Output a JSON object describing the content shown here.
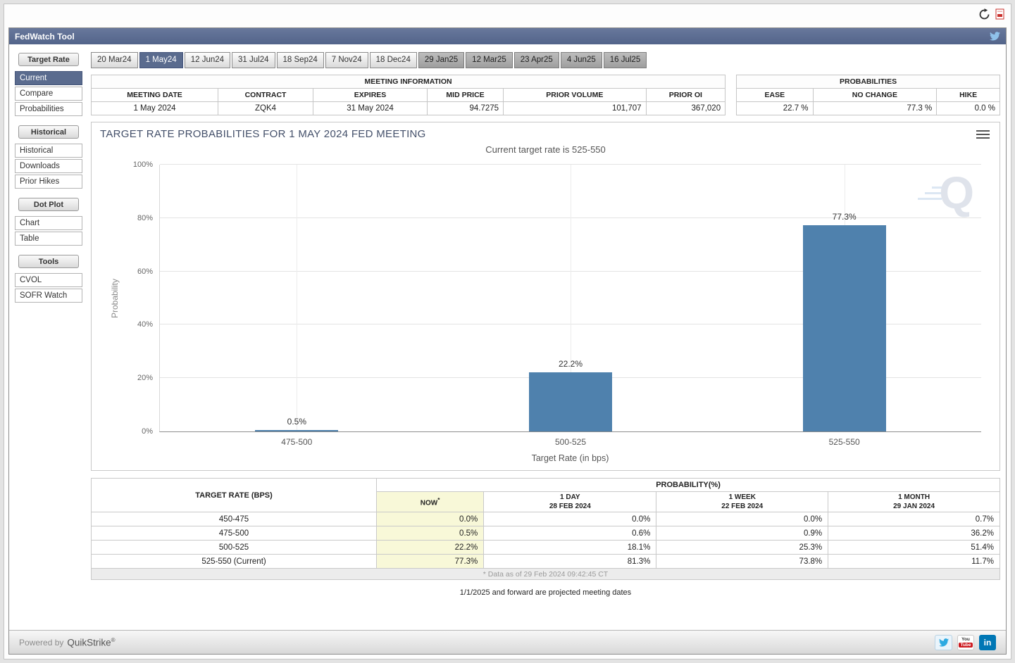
{
  "colors": {
    "accent": "#5a6b8e",
    "bar": "#4f81ad",
    "now_column_bg": "#f8f8d8"
  },
  "header": {
    "title": "FedWatch Tool"
  },
  "sidebar": {
    "sections": [
      {
        "header": "Target Rate",
        "items": [
          {
            "label": "Current",
            "selected": true
          },
          {
            "label": "Compare",
            "selected": false
          },
          {
            "label": "Probabilities",
            "selected": false
          }
        ]
      },
      {
        "header": "Historical",
        "items": [
          {
            "label": "Historical",
            "selected": false
          },
          {
            "label": "Downloads",
            "selected": false
          },
          {
            "label": "Prior Hikes",
            "selected": false
          }
        ]
      },
      {
        "header": "Dot Plot",
        "items": [
          {
            "label": "Chart",
            "selected": false
          },
          {
            "label": "Table",
            "selected": false
          }
        ]
      },
      {
        "header": "Tools",
        "items": [
          {
            "label": "CVOL",
            "selected": false
          },
          {
            "label": "SOFR Watch",
            "selected": false
          }
        ]
      }
    ]
  },
  "meeting_tabs": [
    {
      "label": "20 Mar24",
      "state": "normal"
    },
    {
      "label": "1 May24",
      "state": "selected"
    },
    {
      "label": "12 Jun24",
      "state": "normal"
    },
    {
      "label": "31 Jul24",
      "state": "normal"
    },
    {
      "label": "18 Sep24",
      "state": "normal"
    },
    {
      "label": "7 Nov24",
      "state": "normal"
    },
    {
      "label": "18 Dec24",
      "state": "normal"
    },
    {
      "label": "29 Jan25",
      "state": "projected"
    },
    {
      "label": "12 Mar25",
      "state": "projected"
    },
    {
      "label": "23 Apr25",
      "state": "projected"
    },
    {
      "label": "4 Jun25",
      "state": "projected"
    },
    {
      "label": "16 Jul25",
      "state": "projected"
    }
  ],
  "meeting_info": {
    "title": "MEETING INFORMATION",
    "headers": [
      "MEETING DATE",
      "CONTRACT",
      "EXPIRES",
      "MID PRICE",
      "PRIOR VOLUME",
      "PRIOR OI"
    ],
    "values": [
      "1 May 2024",
      "ZQK4",
      "31 May 2024",
      "94.7275",
      "101,707",
      "367,020"
    ]
  },
  "probabilities_summary": {
    "title": "PROBABILITIES",
    "headers": [
      "EASE",
      "NO CHANGE",
      "HIKE"
    ],
    "values": [
      "22.7 %",
      "77.3 %",
      "0.0 %"
    ]
  },
  "chart_data": {
    "type": "bar",
    "title": "TARGET RATE PROBABILITIES FOR 1 MAY 2024 FED MEETING",
    "subtitle": "Current target rate is 525-550",
    "categories": [
      "475-500",
      "500-525",
      "525-550"
    ],
    "values": [
      0.5,
      22.2,
      77.3
    ],
    "bar_labels": [
      "0.5%",
      "22.2%",
      "77.3%"
    ],
    "xlabel": "Target Rate (in bps)",
    "ylabel": "Probability",
    "ylim": [
      0,
      100
    ],
    "yticks": [
      0,
      20,
      40,
      60,
      80,
      100
    ],
    "ytick_labels": [
      "0%",
      "20%",
      "40%",
      "60%",
      "80%",
      "100%"
    ],
    "grid": true,
    "legend": "none",
    "bar_color": "#4f81ad",
    "watermark": "Q"
  },
  "probability_table": {
    "col1_header": "TARGET RATE (BPS)",
    "group_header": "PROBABILITY(%)",
    "sub_headers": [
      {
        "line1": "NOW",
        "sup": "*",
        "line2": ""
      },
      {
        "line1": "1 DAY",
        "line2": "28 FEB 2024"
      },
      {
        "line1": "1 WEEK",
        "line2": "22 FEB 2024"
      },
      {
        "line1": "1 MONTH",
        "line2": "29 JAN 2024"
      }
    ],
    "rows": [
      {
        "rate": "450-475",
        "now": "0.0%",
        "day": "0.0%",
        "week": "0.0%",
        "month": "0.7%"
      },
      {
        "rate": "475-500",
        "now": "0.5%",
        "day": "0.6%",
        "week": "0.9%",
        "month": "36.2%"
      },
      {
        "rate": "500-525",
        "now": "22.2%",
        "day": "18.1%",
        "week": "25.3%",
        "month": "51.4%"
      },
      {
        "rate": "525-550 (Current)",
        "now": "77.3%",
        "day": "81.3%",
        "week": "73.8%",
        "month": "11.7%"
      }
    ],
    "footnote": "* Data as of 29 Feb 2024 09:42:45 CT"
  },
  "notes": {
    "projected": "1/1/2025 and forward are projected meeting dates"
  },
  "footer": {
    "powered_by": "Powered by",
    "brand": "QuikStrike",
    "reg": "®",
    "youtube_top": "You",
    "youtube_bottom": "Tube",
    "linkedin_glyph": "in"
  }
}
